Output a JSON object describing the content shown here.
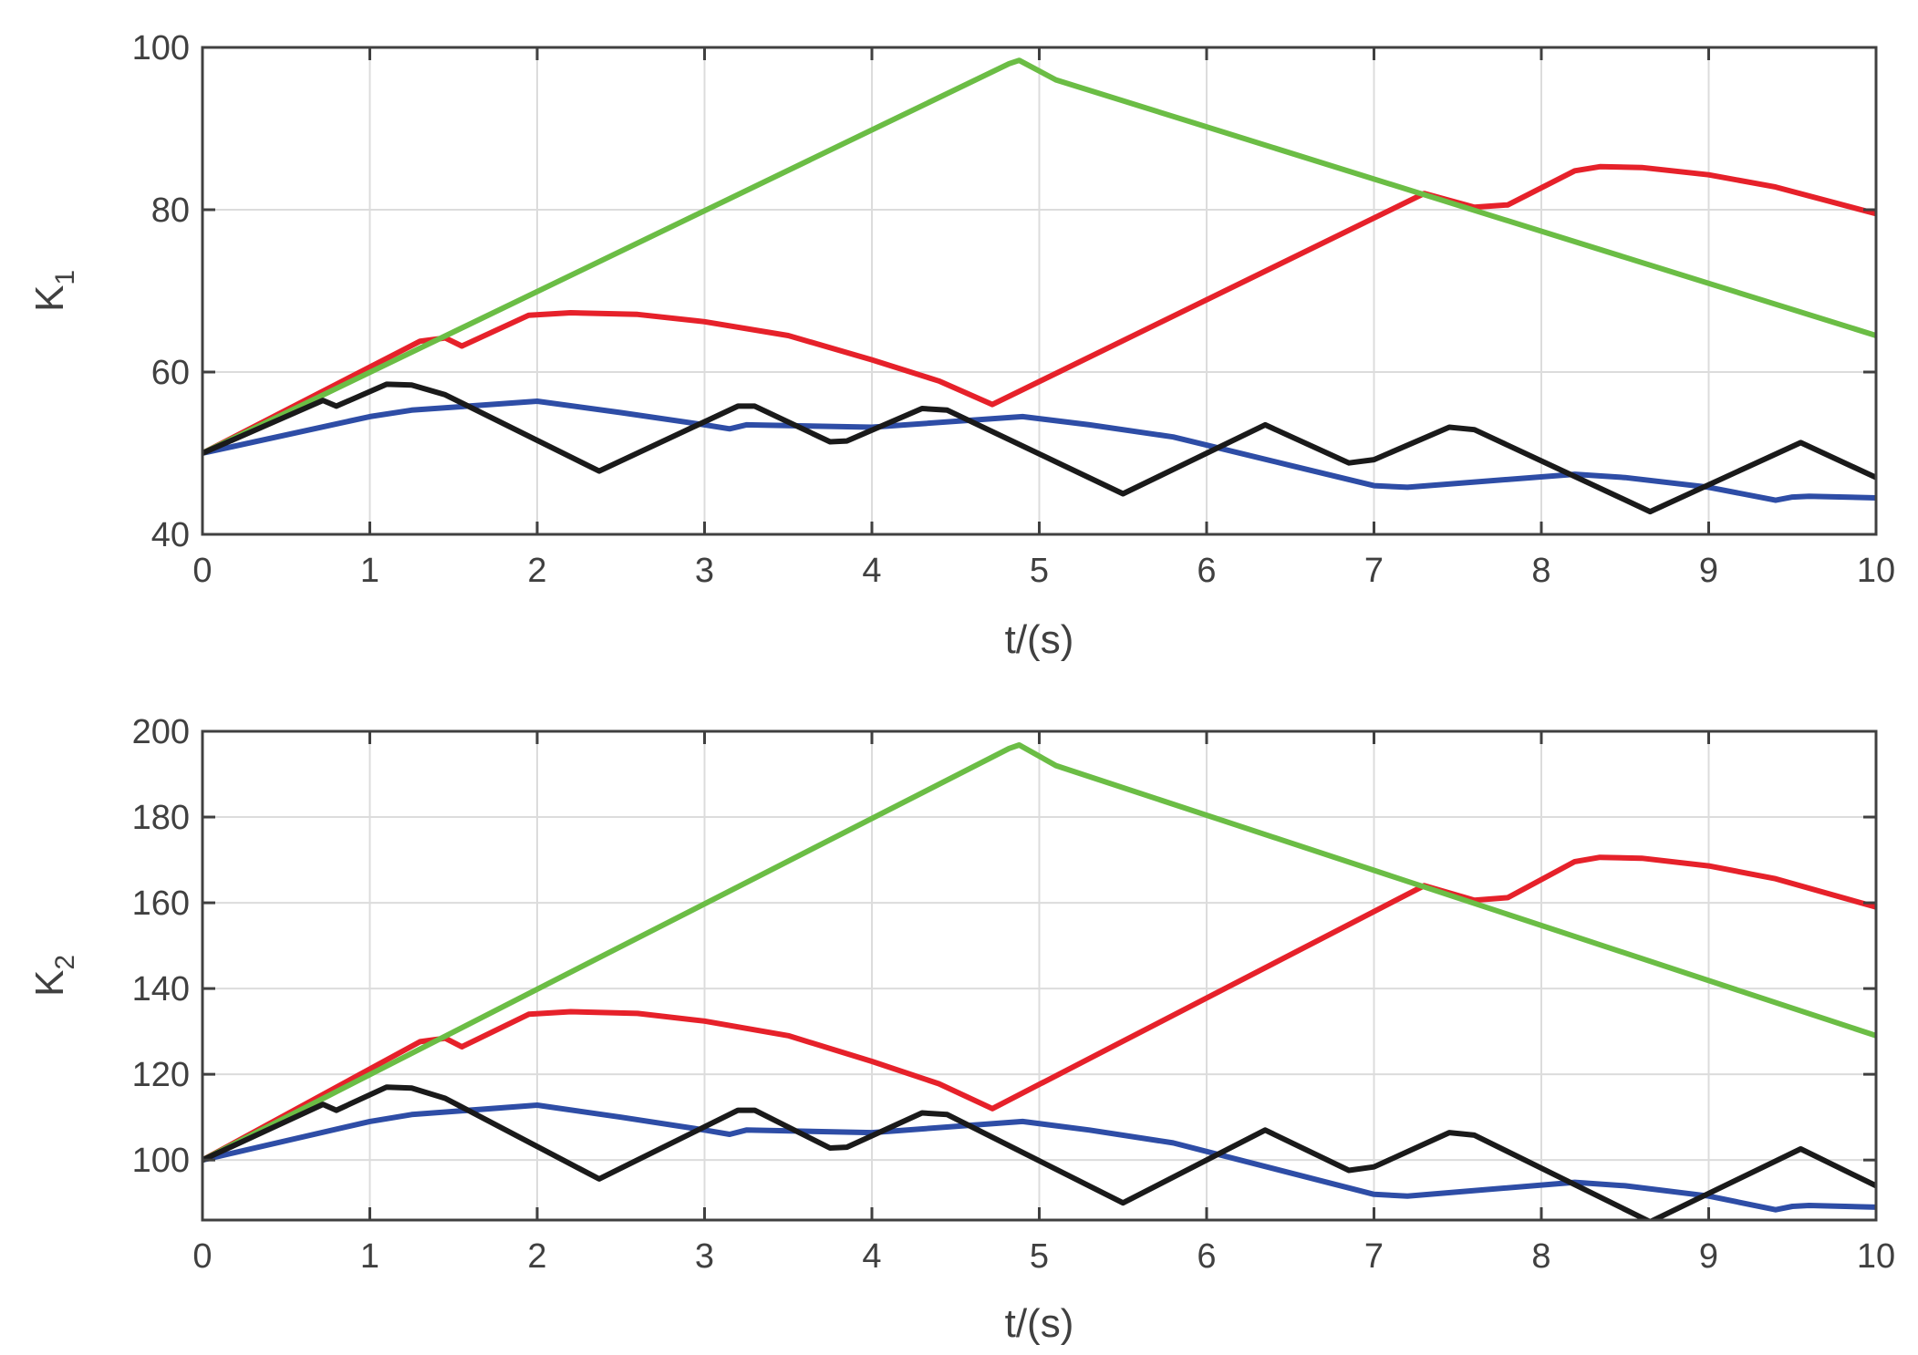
{
  "chart_data": [
    {
      "type": "line",
      "xlabel": "t/(s)",
      "ylabel": "K",
      "ylabel_sub": "1",
      "xlim": [
        0,
        10
      ],
      "ylim": [
        40,
        100
      ],
      "xticks": [
        "0",
        "1",
        "2",
        "3",
        "4",
        "5",
        "6",
        "7",
        "8",
        "9",
        "10"
      ],
      "yticks": [
        "40",
        "60",
        "80",
        "100"
      ],
      "grid": true,
      "series": [
        {
          "color": "#2e4da6",
          "x": [
            0,
            1,
            1.25,
            2,
            2.5,
            3,
            3.15,
            3.25,
            4,
            4.9,
            5.3,
            5.8,
            6.5,
            7,
            7.2,
            8.2,
            8.5,
            9,
            9.4,
            9.5,
            9.6,
            10
          ],
          "y": [
            50,
            54.5,
            55.3,
            56.4,
            55,
            53.5,
            53,
            53.5,
            53.2,
            54.5,
            53.5,
            52,
            48.5,
            46,
            45.8,
            47.4,
            47,
            45.8,
            44.2,
            44.6,
            44.7,
            44.5
          ]
        },
        {
          "color": "#e6212a",
          "x": [
            0,
            1.3,
            1.45,
            1.55,
            1.95,
            2.2,
            2.6,
            3.0,
            3.5,
            4.0,
            4.4,
            4.72,
            7.3,
            7.6,
            7.8,
            8.2,
            8.35,
            8.6,
            9.0,
            9.4,
            10
          ],
          "y": [
            50,
            63.8,
            64.2,
            63.2,
            67,
            67.3,
            67.1,
            66.2,
            64.5,
            61.5,
            58.9,
            56,
            82,
            80.3,
            80.6,
            84.8,
            85.3,
            85.2,
            84.3,
            82.8,
            79.5
          ]
        },
        {
          "color": "#6bbd45",
          "x": [
            0,
            4.82,
            4.88,
            5.1,
            10
          ],
          "y": [
            50,
            98,
            98.4,
            96,
            64.5
          ]
        },
        {
          "color": "#1a1a1a",
          "x": [
            0,
            0.72,
            0.8,
            1.1,
            1.25,
            1.45,
            2.37,
            3.2,
            3.3,
            3.75,
            3.85,
            4.3,
            4.45,
            5.5,
            6.35,
            6.85,
            7.0,
            7.45,
            7.6,
            8.65,
            9.55,
            10
          ],
          "y": [
            50,
            56.5,
            55.8,
            58.5,
            58.4,
            57.2,
            47.8,
            55.8,
            55.8,
            51.4,
            51.5,
            55.5,
            55.3,
            45,
            53.5,
            48.8,
            49.2,
            53.2,
            52.9,
            42.8,
            51.3,
            47
          ]
        }
      ]
    },
    {
      "type": "line",
      "xlabel": "t/(s)",
      "ylabel": "K",
      "ylabel_sub": "2",
      "xlim": [
        0,
        10
      ],
      "ylim": [
        86,
        200
      ],
      "xticks": [
        "0",
        "1",
        "2",
        "3",
        "4",
        "5",
        "6",
        "7",
        "8",
        "9",
        "10"
      ],
      "yticks": [
        "100",
        "120",
        "140",
        "160",
        "180",
        "200"
      ],
      "ytick_values": [
        100,
        120,
        140,
        160,
        180,
        200
      ],
      "grid": true,
      "series": [
        {
          "color": "#2e4da6",
          "x": [
            0,
            1,
            1.25,
            2,
            2.5,
            3,
            3.15,
            3.25,
            4,
            4.9,
            5.3,
            5.8,
            6.5,
            7,
            7.2,
            8.2,
            8.5,
            9,
            9.4,
            9.5,
            9.6,
            10
          ],
          "y": [
            100,
            109,
            110.6,
            112.8,
            110,
            107,
            106,
            107,
            106.4,
            109,
            107,
            104,
            97,
            92,
            91.6,
            94.8,
            94,
            91.6,
            88.4,
            89.2,
            89.4,
            89
          ]
        },
        {
          "color": "#e6212a",
          "x": [
            0,
            1.3,
            1.45,
            1.55,
            1.95,
            2.2,
            2.6,
            3.0,
            3.5,
            4.0,
            4.4,
            4.72,
            7.3,
            7.6,
            7.8,
            8.2,
            8.35,
            8.6,
            9.0,
            9.4,
            10
          ],
          "y": [
            100,
            127.6,
            128.4,
            126.4,
            134,
            134.6,
            134.2,
            132.4,
            129,
            123,
            117.8,
            112,
            164,
            160.6,
            161.2,
            169.6,
            170.6,
            170.4,
            168.6,
            165.6,
            159
          ]
        },
        {
          "color": "#6bbd45",
          "x": [
            0,
            4.82,
            4.88,
            5.1,
            10
          ],
          "y": [
            100,
            196,
            196.8,
            192,
            129
          ]
        },
        {
          "color": "#1a1a1a",
          "x": [
            0,
            0.72,
            0.8,
            1.1,
            1.25,
            1.45,
            2.37,
            3.2,
            3.3,
            3.75,
            3.85,
            4.3,
            4.45,
            5.5,
            6.35,
            6.85,
            7.0,
            7.45,
            7.6,
            8.65,
            9.55,
            10
          ],
          "y": [
            100,
            113,
            111.6,
            117,
            116.8,
            114.4,
            95.6,
            111.6,
            111.6,
            102.8,
            103,
            111,
            110.6,
            90,
            107,
            97.6,
            98.4,
            106.4,
            105.8,
            85.6,
            102.6,
            94
          ]
        }
      ]
    }
  ]
}
